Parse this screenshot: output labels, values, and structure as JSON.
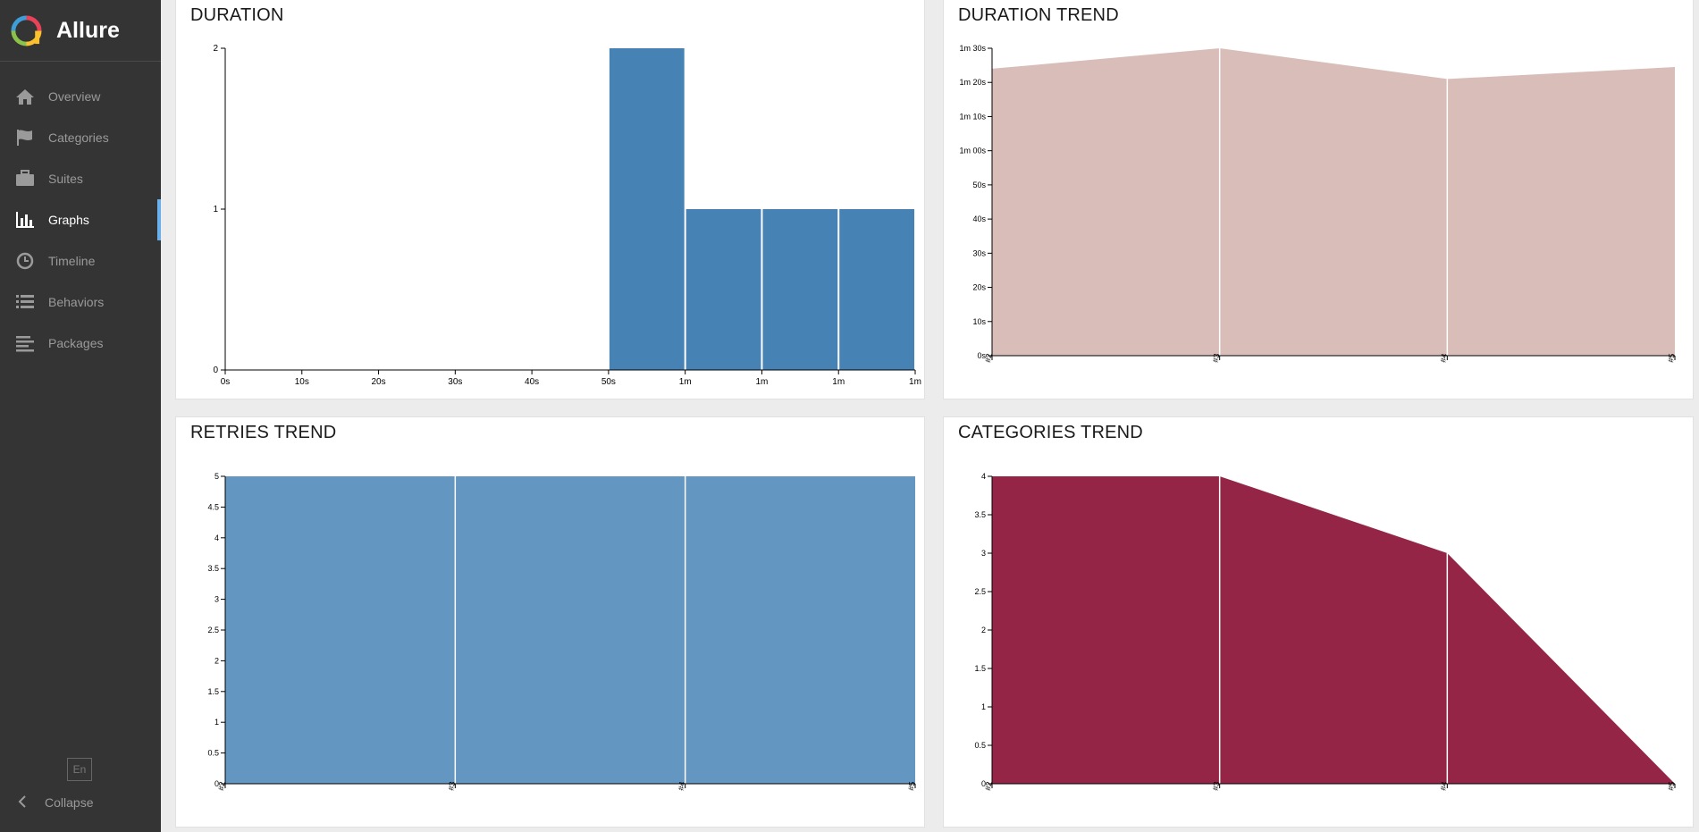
{
  "app": {
    "brand": "Allure"
  },
  "sidebar": {
    "items": [
      {
        "label": "Overview",
        "icon": "home-icon",
        "active": false
      },
      {
        "label": "Categories",
        "icon": "flag-icon",
        "active": false
      },
      {
        "label": "Suites",
        "icon": "briefcase-icon",
        "active": false
      },
      {
        "label": "Graphs",
        "icon": "bar-chart-icon",
        "active": true
      },
      {
        "label": "Timeline",
        "icon": "clock-icon",
        "active": false
      },
      {
        "label": "Behaviors",
        "icon": "list-icon",
        "active": false
      },
      {
        "label": "Packages",
        "icon": "align-left-icon",
        "active": false
      }
    ],
    "language": "En",
    "collapse_label": "Collapse"
  },
  "widgets": {
    "duration": {
      "title": "DURATION"
    },
    "duration_trend": {
      "title": "DURATION TREND"
    },
    "retries_trend": {
      "title": "RETRIES TREND"
    },
    "categories_trend": {
      "title": "CATEGORIES TREND"
    }
  },
  "chart_data": [
    {
      "id": "duration",
      "type": "bar",
      "title": "DURATION",
      "x_ticks": [
        "0s",
        "10s",
        "20s",
        "30s",
        "40s",
        "50s",
        "1m",
        "1m",
        "1m",
        "1m"
      ],
      "y_ticks": [
        "0",
        "1",
        "2"
      ],
      "ylim": [
        0,
        2
      ],
      "bins": [
        {
          "from": 5,
          "to": 6,
          "value": 2
        },
        {
          "from": 6,
          "to": 7,
          "value": 1
        },
        {
          "from": 7,
          "to": 8,
          "value": 1
        },
        {
          "from": 8,
          "to": 9,
          "value": 1
        }
      ],
      "color": "#4682b4",
      "grid": false
    },
    {
      "id": "duration_trend",
      "type": "area",
      "title": "DURATION TREND",
      "x": [
        "#2",
        "#3",
        "#4",
        "#5"
      ],
      "y_ticks": [
        "0s",
        "10s",
        "20s",
        "30s",
        "40s",
        "50s",
        "1m 00s",
        "1m 10s",
        "1m 20s",
        "1m 30s"
      ],
      "ylim": [
        0,
        90
      ],
      "values": [
        84,
        90,
        81,
        84.5
      ],
      "color": "#d8bdb8",
      "grid": false
    },
    {
      "id": "retries_trend",
      "type": "area",
      "title": "RETRIES TREND",
      "x": [
        "#2",
        "#3",
        "#4",
        "#5"
      ],
      "y_ticks": [
        "0",
        "0.5",
        "1",
        "1.5",
        "2",
        "2.5",
        "3",
        "3.5",
        "4",
        "4.5",
        "5"
      ],
      "ylim": [
        0,
        5
      ],
      "values": [
        5,
        5,
        5,
        5
      ],
      "color": "#6496c2",
      "grid": false
    },
    {
      "id": "categories_trend",
      "type": "area",
      "title": "CATEGORIES TREND",
      "x": [
        "#2",
        "#3",
        "#4",
        "#5"
      ],
      "y_ticks": [
        "0",
        "0.5",
        "1",
        "1.5",
        "2",
        "2.5",
        "3",
        "3.5",
        "4"
      ],
      "ylim": [
        0,
        4
      ],
      "values": [
        4,
        4,
        3,
        0
      ],
      "color": "#952546",
      "grid": false
    }
  ]
}
